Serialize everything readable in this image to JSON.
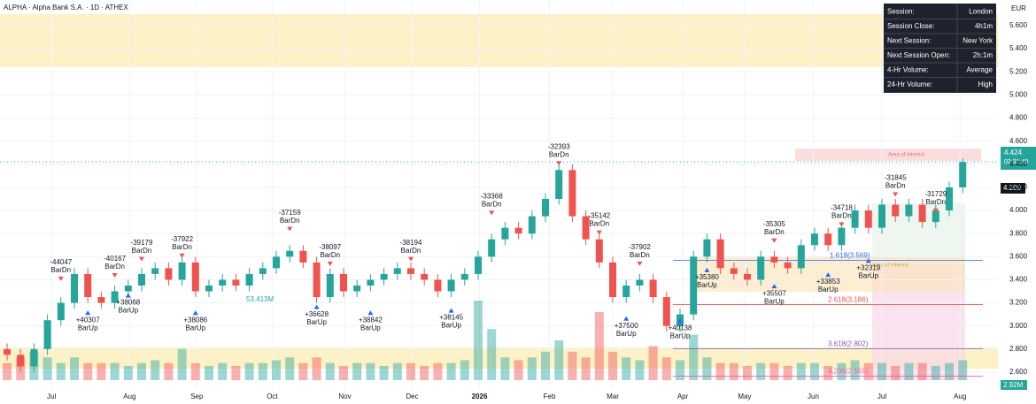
{
  "header": {
    "title": "ALPHA · Alpha Bank S.A. · 1D · ATHEX",
    "currency": "EUR",
    "last_price": "4.424",
    "countdown": "02:31:49",
    "level_price": "4.200",
    "volume_label": "2.92M",
    "volume_note": "53.413M"
  },
  "session_table": [
    [
      "Session:",
      "London"
    ],
    [
      "Session Close:",
      "4h1m"
    ],
    [
      "Next Session:",
      "New York"
    ],
    [
      "Next Session Open:",
      "2h:1m"
    ],
    [
      "4-Hr Volume:",
      "Average"
    ],
    [
      "24-Hr Volume:",
      "High"
    ]
  ],
  "chart_data": {
    "type": "candlestick",
    "up_color": "#26a69a",
    "down_color": "#ef5350",
    "ylim": [
      2.6,
      5.6
    ],
    "yticks": [
      {
        "value": 2.6,
        "label": "2.600"
      },
      {
        "value": 2.8,
        "label": "2.800"
      },
      {
        "value": 3.0,
        "label": "3.000"
      },
      {
        "value": 3.2,
        "label": "3.200"
      },
      {
        "value": 3.4,
        "label": "3.400"
      },
      {
        "value": 3.6,
        "label": "3.600"
      },
      {
        "value": 3.8,
        "label": "3.800"
      },
      {
        "value": 4.0,
        "label": "4.000"
      },
      {
        "value": 4.2,
        "label": "4.200"
      },
      {
        "value": 4.4,
        "label": "4.400"
      },
      {
        "value": 4.6,
        "label": "4.600"
      },
      {
        "value": 4.8,
        "label": "4.800"
      },
      {
        "value": 5.0,
        "label": "5.000"
      },
      {
        "value": 5.2,
        "label": "5.200"
      },
      {
        "value": 5.4,
        "label": "5.400"
      },
      {
        "value": 5.6,
        "label": "5.600"
      }
    ],
    "xticks": [
      {
        "value": 3.3,
        "label": "Jul"
      },
      {
        "value": 9.1,
        "label": "Aug"
      },
      {
        "value": 14.1,
        "label": "Sep"
      },
      {
        "value": 19.7,
        "label": "Oct"
      },
      {
        "value": 25.1,
        "label": "Nov"
      },
      {
        "value": 30.1,
        "label": "Dec"
      },
      {
        "value": 35.1,
        "label": "2026"
      },
      {
        "value": 40.3,
        "label": "Feb"
      },
      {
        "value": 45,
        "label": "Mar"
      },
      {
        "value": 50.2,
        "label": "Apr"
      },
      {
        "value": 54.8,
        "label": "May"
      },
      {
        "value": 59.9,
        "label": "Jun"
      },
      {
        "value": 65,
        "label": "Jul"
      },
      {
        "value": 70.8,
        "label": "Aug"
      }
    ],
    "ohlc": [
      [
        2.8,
        2.85,
        2.7,
        2.75
      ],
      [
        2.75,
        2.8,
        2.6,
        2.65
      ],
      [
        2.65,
        2.85,
        2.6,
        2.8
      ],
      [
        2.8,
        3.1,
        2.75,
        3.05
      ],
      [
        3.05,
        3.25,
        3.0,
        3.2
      ],
      [
        3.2,
        3.5,
        3.15,
        3.45
      ],
      [
        3.45,
        3.5,
        3.2,
        3.25
      ],
      [
        3.25,
        3.3,
        3.15,
        3.2
      ],
      [
        3.2,
        3.35,
        3.15,
        3.3
      ],
      [
        3.3,
        3.4,
        3.25,
        3.35
      ],
      [
        3.35,
        3.5,
        3.3,
        3.45
      ],
      [
        3.45,
        3.55,
        3.4,
        3.5
      ],
      [
        3.5,
        3.55,
        3.35,
        3.4
      ],
      [
        3.4,
        3.6,
        3.35,
        3.55
      ],
      [
        3.55,
        3.6,
        3.25,
        3.3
      ],
      [
        3.3,
        3.4,
        3.25,
        3.35
      ],
      [
        3.35,
        3.45,
        3.3,
        3.4
      ],
      [
        3.4,
        3.45,
        3.3,
        3.35
      ],
      [
        3.35,
        3.5,
        3.3,
        3.45
      ],
      [
        3.45,
        3.55,
        3.4,
        3.5
      ],
      [
        3.5,
        3.65,
        3.45,
        3.6
      ],
      [
        3.6,
        3.7,
        3.55,
        3.65
      ],
      [
        3.65,
        3.7,
        3.5,
        3.55
      ],
      [
        3.55,
        3.6,
        3.2,
        3.25
      ],
      [
        3.25,
        3.5,
        3.2,
        3.45
      ],
      [
        3.45,
        3.5,
        3.25,
        3.3
      ],
      [
        3.3,
        3.4,
        3.25,
        3.35
      ],
      [
        3.35,
        3.45,
        3.3,
        3.4
      ],
      [
        3.4,
        3.5,
        3.35,
        3.45
      ],
      [
        3.45,
        3.55,
        3.4,
        3.5
      ],
      [
        3.5,
        3.55,
        3.4,
        3.45
      ],
      [
        3.45,
        3.5,
        3.35,
        3.4
      ],
      [
        3.4,
        3.45,
        3.25,
        3.3
      ],
      [
        3.3,
        3.45,
        3.25,
        3.4
      ],
      [
        3.4,
        3.5,
        3.35,
        3.45
      ],
      [
        3.45,
        3.65,
        3.4,
        3.6
      ],
      [
        3.6,
        3.8,
        3.55,
        3.75
      ],
      [
        3.75,
        3.9,
        3.7,
        3.85
      ],
      [
        3.85,
        3.9,
        3.75,
        3.8
      ],
      [
        3.8,
        4.0,
        3.75,
        3.95
      ],
      [
        3.95,
        4.15,
        3.9,
        4.1
      ],
      [
        4.1,
        4.4,
        4.05,
        4.35
      ],
      [
        4.35,
        4.4,
        3.9,
        3.95
      ],
      [
        3.95,
        4.0,
        3.7,
        3.75
      ],
      [
        3.75,
        3.8,
        3.5,
        3.55
      ],
      [
        3.55,
        3.6,
        3.2,
        3.25
      ],
      [
        3.25,
        3.4,
        3.2,
        3.35
      ],
      [
        3.35,
        3.45,
        3.3,
        3.4
      ],
      [
        3.4,
        3.45,
        3.2,
        3.25
      ],
      [
        3.25,
        3.3,
        2.95,
        3.0
      ],
      [
        3.0,
        3.15,
        2.95,
        3.1
      ],
      [
        3.1,
        3.65,
        3.05,
        3.6
      ],
      [
        3.6,
        3.8,
        3.55,
        3.75
      ],
      [
        3.75,
        3.8,
        3.45,
        3.5
      ],
      [
        3.5,
        3.55,
        3.4,
        3.45
      ],
      [
        3.45,
        3.5,
        3.35,
        3.4
      ],
      [
        3.4,
        3.65,
        3.35,
        3.6
      ],
      [
        3.6,
        3.65,
        3.5,
        3.55
      ],
      [
        3.55,
        3.6,
        3.45,
        3.5
      ],
      [
        3.5,
        3.75,
        3.45,
        3.7
      ],
      [
        3.7,
        3.85,
        3.65,
        3.8
      ],
      [
        3.8,
        3.85,
        3.65,
        3.7
      ],
      [
        3.7,
        3.9,
        3.65,
        3.85
      ],
      [
        3.85,
        4.05,
        3.8,
        4.0
      ],
      [
        4.0,
        4.05,
        3.8,
        3.85
      ],
      [
        3.85,
        4.1,
        3.8,
        4.05
      ],
      [
        4.05,
        4.1,
        3.9,
        3.95
      ],
      [
        3.95,
        4.1,
        3.9,
        4.05
      ],
      [
        4.05,
        4.1,
        3.85,
        3.9
      ],
      [
        3.9,
        4.05,
        3.85,
        4.0
      ],
      [
        4.0,
        4.25,
        3.95,
        4.2
      ],
      [
        4.2,
        4.45,
        4.15,
        4.42
      ]
    ],
    "volume": [
      3,
      4,
      5,
      4,
      3,
      4,
      3,
      3,
      3,
      2.5,
      3,
      3.5,
      3,
      5.5,
      3,
      2.5,
      3,
      2.5,
      3,
      3,
      3.5,
      4,
      3,
      4,
      3,
      2.5,
      3,
      3,
      2.5,
      3,
      3,
      2.5,
      3,
      3,
      3.5,
      14,
      9,
      4,
      3.5,
      4,
      5,
      7,
      5,
      4,
      12,
      5,
      4,
      3.5,
      6,
      4,
      3.5,
      8,
      4,
      3,
      3,
      2.5,
      3,
      3,
      2.5,
      3,
      3,
      2.5,
      3,
      3.5,
      3,
      3,
      2.5,
      3,
      3,
      2.5,
      3,
      3.5
    ],
    "annotations": [
      {
        "text": "-44047",
        "tag": "BarDn"
      },
      {
        "text": "-40167",
        "tag": "BarDn"
      },
      {
        "text": "-39179",
        "tag": "BarDn"
      },
      {
        "text": "-37922",
        "tag": "BarDn"
      },
      {
        "text": "-37159",
        "tag": "BarDn"
      },
      {
        "text": "-38097",
        "tag": "BarDn"
      },
      {
        "text": "-38194",
        "tag": "BarDn"
      },
      {
        "text": "-33368",
        "tag": "BarDn"
      },
      {
        "text": "-32393",
        "tag": "BarDn"
      },
      {
        "text": "-35142",
        "tag": "BarDn"
      },
      {
        "text": "-37902",
        "tag": "BarDn"
      },
      {
        "text": "-35305",
        "tag": "BarDn"
      },
      {
        "text": "-34718",
        "tag": "BarDn"
      },
      {
        "text": "-31845",
        "tag": "BarDn"
      },
      {
        "text": "-31729",
        "tag": "BarDn"
      },
      {
        "text": "+40307",
        "tag": "BarUp"
      },
      {
        "text": "+38068",
        "tag": "BarUp"
      },
      {
        "text": "+38086",
        "tag": "BarUp"
      },
      {
        "text": "+36628",
        "tag": "BarUp"
      },
      {
        "text": "+38842",
        "tag": "BarUp"
      },
      {
        "text": "+38145",
        "tag": "BarUp"
      },
      {
        "text": "+37500",
        "tag": "BarUp"
      },
      {
        "text": "+40138",
        "tag": "BarUp"
      },
      {
        "text": "+35380",
        "tag": "BarUp"
      },
      {
        "text": "+35507",
        "tag": "BarUp"
      },
      {
        "text": "+33853",
        "tag": "BarUp"
      },
      {
        "text": "+32319",
        "tag": "BarUp"
      }
    ],
    "fib_levels": [
      {
        "label": "1.618(3.569)",
        "price": 3.569
      },
      {
        "label": "2.618(3.186)",
        "price": 3.186
      },
      {
        "label": "3.618(2.802)",
        "price": 2.802
      },
      {
        "label": "4.236(2.565)",
        "price": 2.565
      }
    ],
    "zones": [
      "Area of Interest",
      "Area of Interest"
    ]
  }
}
